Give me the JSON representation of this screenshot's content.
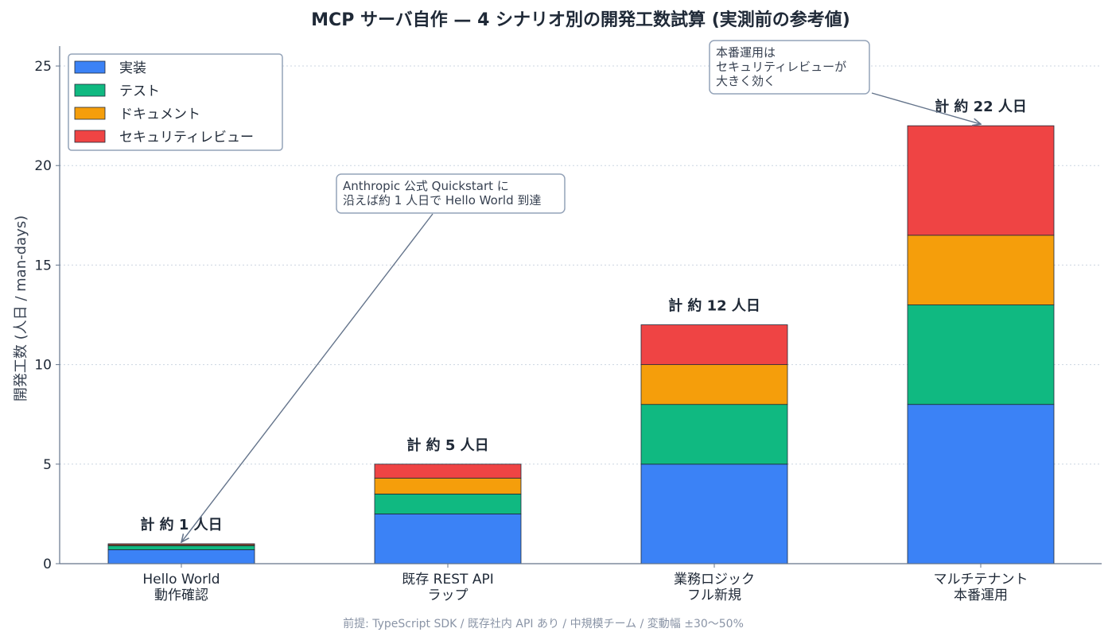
{
  "chart_data": {
    "type": "bar",
    "stacked": true,
    "title": "MCP サーバ自作 — 4 シナリオ別の開発工数試算 (実測前の参考値)",
    "ylabel": "開発工数 (人日 / man-days)",
    "xlabel": "",
    "ylim": [
      0,
      26
    ],
    "yticks": [
      0,
      5,
      10,
      15,
      20,
      25
    ],
    "grid": "horizontal-dotted",
    "legend_position": "top-left",
    "categories": [
      [
        "Hello World",
        "動作確認"
      ],
      [
        "既存 REST API",
        "ラップ"
      ],
      [
        "業務ロジック",
        "フル新規"
      ],
      [
        "マルチテナント",
        "本番運用"
      ]
    ],
    "series": [
      {
        "name": "実装",
        "color": "#3b82f6",
        "values": [
          0.7,
          2.5,
          5,
          8
        ]
      },
      {
        "name": "テスト",
        "color": "#10b981",
        "values": [
          0.2,
          1,
          3,
          5
        ]
      },
      {
        "name": "ドキュメント",
        "color": "#f59e0b",
        "values": [
          0.05,
          0.8,
          2,
          3.5
        ]
      },
      {
        "name": "セキュリティレビュー",
        "color": "#ef4444",
        "values": [
          0.05,
          0.7,
          2,
          5.5
        ]
      }
    ],
    "totals": [
      1,
      5,
      12,
      22
    ],
    "total_labels": [
      "計 約 1 人日",
      "計 約 5 人日",
      "計 約 12 人日",
      "計 約 22 人日"
    ],
    "annotations": [
      {
        "lines": [
          "Anthropic 公式 Quickstart に",
          "沿えば約 1 人日で Hello World 到達"
        ],
        "target_category": 0,
        "target_value": 1
      },
      {
        "lines": [
          "本番運用は",
          "セキュリティレビューが",
          "大きく効く"
        ],
        "target_category": 3,
        "target_value": 22
      }
    ],
    "footnote": "前提: TypeScript SDK / 既存社内 API あり / 中規模チーム / 変動幅 ±30〜50%"
  },
  "colors": {
    "axis": "#64748b",
    "grid": "#cbd5e1",
    "bar_edge": "#1f2937",
    "annotation_border": "#94a3b8",
    "arrow": "#64748b"
  }
}
